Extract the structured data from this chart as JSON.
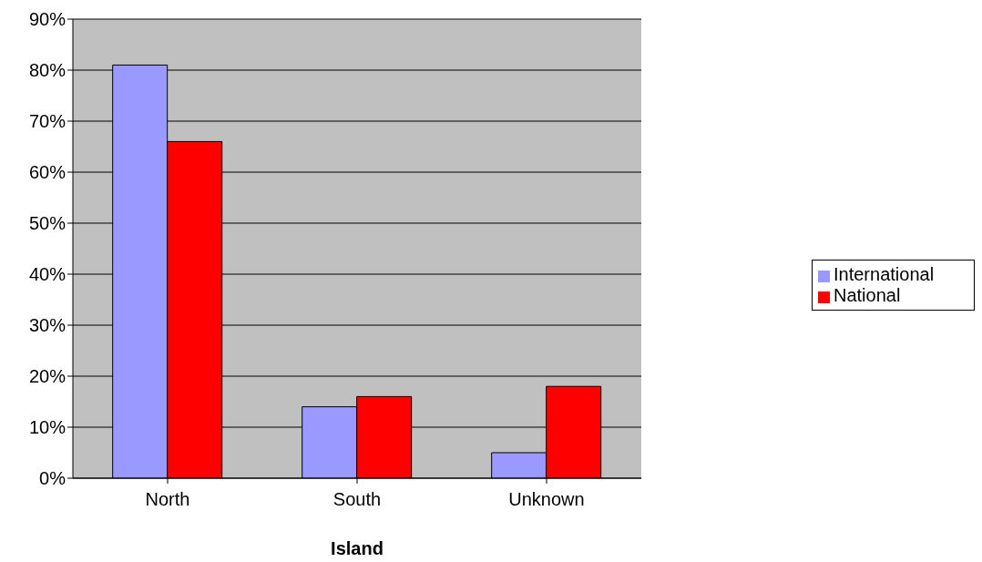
{
  "chart_data": {
    "type": "bar",
    "xlabel": "Island",
    "categories": [
      "North",
      "South",
      "Unknown"
    ],
    "series": [
      {
        "name": "International",
        "color": "#9999ff",
        "values": [
          81,
          14,
          5
        ]
      },
      {
        "name": "National",
        "color": "#ff0000",
        "values": [
          66,
          16,
          18
        ]
      }
    ],
    "ylim": [
      0,
      90
    ],
    "yticks": [
      {
        "value": 0,
        "label": "0%"
      },
      {
        "value": 10,
        "label": "10%"
      },
      {
        "value": 20,
        "label": "20%"
      },
      {
        "value": 30,
        "label": "30%"
      },
      {
        "value": 40,
        "label": "40%"
      },
      {
        "value": 50,
        "label": "50%"
      },
      {
        "value": 60,
        "label": "60%"
      },
      {
        "value": 70,
        "label": "70%"
      },
      {
        "value": 80,
        "label": "80%"
      },
      {
        "value": 90,
        "label": "90%"
      }
    ],
    "grid": "y",
    "legend": "right"
  }
}
